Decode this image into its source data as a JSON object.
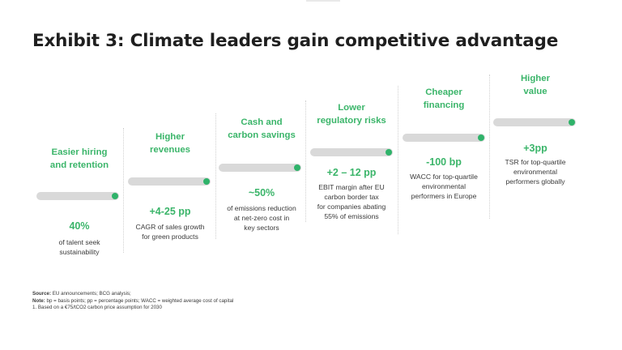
{
  "title": "Exhibit 3: Climate leaders gain competitive advantage",
  "columns": [
    {
      "heading": [
        "Easier hiring",
        "and retention"
      ],
      "value": "40%",
      "description": [
        "of talent seek",
        "sustainability"
      ]
    },
    {
      "heading": [
        "Higher",
        "revenues"
      ],
      "value": "+4-25 pp",
      "description": [
        "CAGR of sales growth",
        "for green products"
      ]
    },
    {
      "heading": [
        "Cash and",
        "carbon savings"
      ],
      "value": "~50%",
      "description": [
        "of emissions reduction",
        "at net-zero cost in",
        "key sectors"
      ]
    },
    {
      "heading": [
        "Lower",
        "regulatory risks"
      ],
      "value": "+2 – 12 pp",
      "description": [
        "EBIT margin after EU",
        "carbon border tax",
        "for companies abating",
        "55% of emissions"
      ]
    },
    {
      "heading": [
        "Cheaper",
        "financing"
      ],
      "value": "-100 bp",
      "description": [
        "WACC for top-quartile",
        "environmental",
        "performers in Europe"
      ]
    },
    {
      "heading": [
        "Higher",
        "value"
      ],
      "value": "+3pp",
      "description": [
        "TSR for top-quartile",
        "environmental",
        "performers globally"
      ]
    }
  ],
  "footer": {
    "source_label": "Source:",
    "source_text": " EU announcements; BCG analysis;",
    "note_label": "Note:",
    "note_text": " bp = basis points; pp = percentage points; WACC = weighted average cost of capital",
    "footnote": "1. Based on a €75/tCO2 carbon price assumption for 2030"
  }
}
